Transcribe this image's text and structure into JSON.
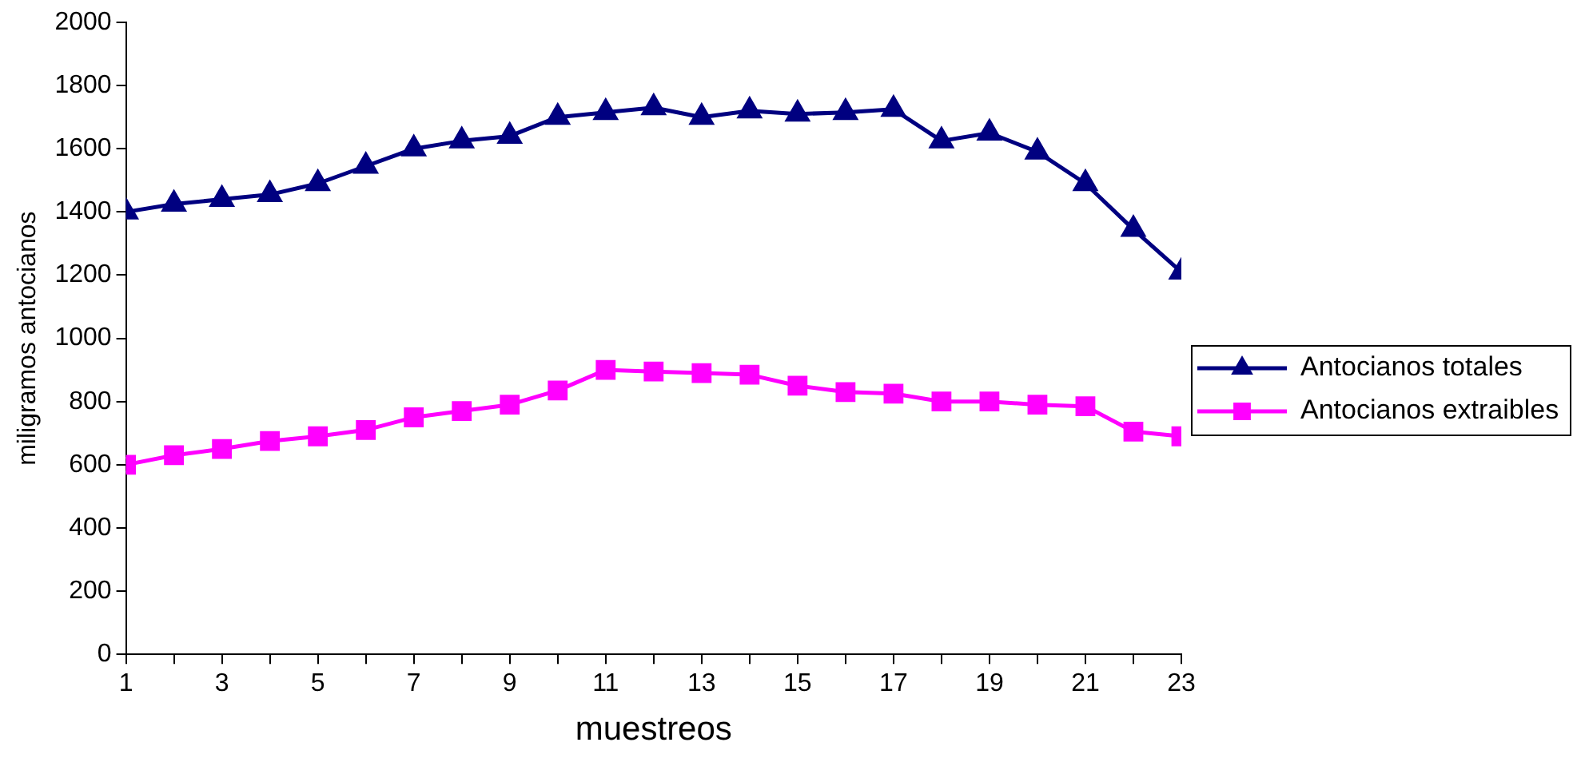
{
  "chart_data": {
    "type": "line",
    "xlabel": "muestreos",
    "ylabel": "miligramos antocianos",
    "x": [
      1,
      2,
      3,
      4,
      5,
      6,
      7,
      8,
      9,
      10,
      11,
      12,
      13,
      14,
      15,
      16,
      17,
      18,
      19,
      20,
      21,
      22,
      23
    ],
    "series": [
      {
        "name": "Antocianos totales",
        "color": "#000080",
        "marker": "triangle",
        "values": [
          1400,
          1425,
          1440,
          1455,
          1490,
          1545,
          1600,
          1625,
          1640,
          1700,
          1715,
          1730,
          1700,
          1720,
          1710,
          1715,
          1725,
          1625,
          1650,
          1590,
          1490,
          1345,
          1210
        ]
      },
      {
        "name": "Antocianos extraibles",
        "color": "#ff00ff",
        "marker": "square",
        "values": [
          600,
          630,
          650,
          675,
          690,
          710,
          750,
          770,
          790,
          835,
          900,
          895,
          890,
          885,
          850,
          830,
          825,
          800,
          800,
          790,
          785,
          705,
          690
        ]
      }
    ],
    "xlim": [
      1,
      23
    ],
    "xticks": [
      1,
      {
        "value": 2,
        "label": null
      },
      3,
      {
        "value": 4,
        "label": null
      },
      5,
      {
        "value": 6,
        "label": null
      },
      7,
      {
        "value": 8,
        "label": null
      },
      9,
      {
        "value": 10,
        "label": null
      },
      11,
      {
        "value": 12,
        "label": null
      },
      13,
      {
        "value": 14,
        "label": null
      },
      15,
      {
        "value": 16,
        "label": null
      },
      17,
      {
        "value": 18,
        "label": null
      },
      19,
      {
        "value": 20,
        "label": null
      },
      21,
      {
        "value": 22,
        "label": null
      },
      23
    ],
    "ylim": [
      0,
      2000
    ],
    "yticks": [
      0,
      200,
      400,
      600,
      800,
      1000,
      1200,
      1400,
      1600,
      1800,
      2000
    ],
    "grid": false,
    "legend": "right",
    "line_style": "solid"
  }
}
